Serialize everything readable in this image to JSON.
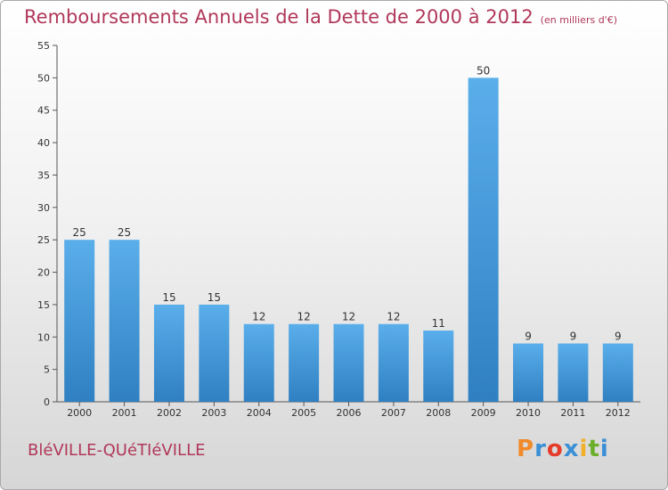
{
  "title": "Remboursements Annuels de la Dette de 2000 à 2012",
  "subtitle": "(en milliers d'€)",
  "commune": "BléVILLE-QUéTIéVILLE",
  "logo": {
    "text": "Proxiti",
    "colors": [
      "#f08a2a",
      "#3a8fd6",
      "#e63a2a",
      "#3a8fd6",
      "#f2b02a",
      "#6aaf2a",
      "#3a8fd6"
    ]
  },
  "colors": {
    "title": "#b0385a",
    "bar_top": "#5aaeea",
    "bar_bottom": "#2f80c2",
    "axis": "#555555"
  },
  "chart_data": {
    "type": "bar",
    "title": "Remboursements Annuels de la Dette de 2000 à 2012",
    "subtitle": "(en milliers d'€)",
    "categories": [
      "2000",
      "2001",
      "2002",
      "2003",
      "2004",
      "2005",
      "2006",
      "2007",
      "2008",
      "2009",
      "2010",
      "2011",
      "2012"
    ],
    "values": [
      25,
      25,
      15,
      15,
      12,
      12,
      12,
      12,
      11,
      50,
      9,
      9,
      9
    ],
    "ylim": [
      0,
      55
    ],
    "yticks": [
      0,
      5,
      10,
      15,
      20,
      25,
      30,
      35,
      40,
      45,
      50,
      55
    ],
    "xlabel": "",
    "ylabel": "",
    "grid": false,
    "legend": "none"
  }
}
